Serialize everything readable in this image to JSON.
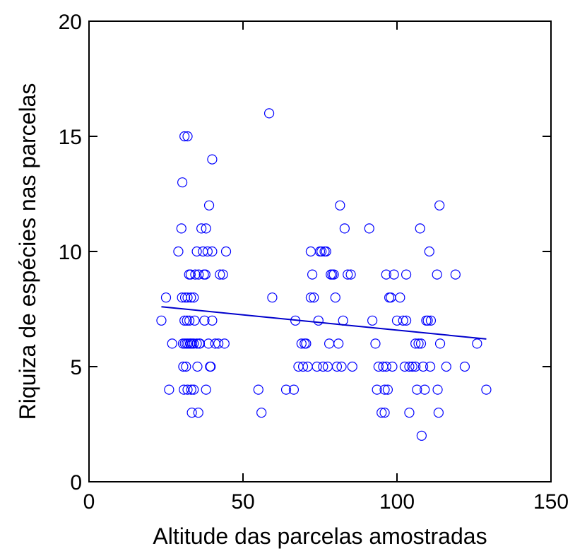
{
  "chart_data": {
    "type": "scatter",
    "title": "",
    "xlabel": "Altitude das parcelas amostradas",
    "ylabel": "Riquiza de espécies nas parcelas",
    "xlim": [
      0,
      150
    ],
    "ylim": [
      0,
      20
    ],
    "xticks": [
      0,
      50,
      100,
      150
    ],
    "yticks": [
      0,
      5,
      10,
      15,
      20
    ],
    "grid": false,
    "marker": "open-circle",
    "marker_color": "#0000ff",
    "trend_color": "#0000cc",
    "trendline": {
      "x": [
        23.5,
        129
      ],
      "y": [
        7.6,
        6.2
      ]
    },
    "points": [
      [
        23.5,
        7
      ],
      [
        25,
        8
      ],
      [
        26,
        4
      ],
      [
        27,
        6
      ],
      [
        29,
        10
      ],
      [
        30,
        11
      ],
      [
        30.2,
        8
      ],
      [
        30.3,
        13
      ],
      [
        30.5,
        6
      ],
      [
        30.6,
        5
      ],
      [
        30.8,
        4
      ],
      [
        31,
        15
      ],
      [
        31,
        7
      ],
      [
        31.1,
        6
      ],
      [
        31.2,
        8
      ],
      [
        31.5,
        5
      ],
      [
        31.7,
        6
      ],
      [
        31.8,
        7
      ],
      [
        32,
        15
      ],
      [
        32,
        4
      ],
      [
        32,
        8
      ],
      [
        32.2,
        6
      ],
      [
        32.5,
        9
      ],
      [
        32.6,
        7
      ],
      [
        32.8,
        6
      ],
      [
        33,
        9
      ],
      [
        33,
        6
      ],
      [
        33.1,
        8
      ],
      [
        33.2,
        4
      ],
      [
        33.4,
        3
      ],
      [
        33.5,
        6
      ],
      [
        34,
        4
      ],
      [
        34,
        8
      ],
      [
        34,
        6
      ],
      [
        34.3,
        7
      ],
      [
        34.5,
        9
      ],
      [
        35,
        10
      ],
      [
        35,
        6
      ],
      [
        35.2,
        5
      ],
      [
        35.5,
        3
      ],
      [
        35.6,
        9
      ],
      [
        35.8,
        6
      ],
      [
        36,
        6
      ],
      [
        36.5,
        11
      ],
      [
        37,
        10
      ],
      [
        37.3,
        9
      ],
      [
        37.5,
        7
      ],
      [
        37.8,
        9
      ],
      [
        38,
        11
      ],
      [
        38,
        4
      ],
      [
        38.5,
        10
      ],
      [
        38.8,
        6
      ],
      [
        39,
        12
      ],
      [
        39.3,
        5
      ],
      [
        39.5,
        5
      ],
      [
        40,
        14
      ],
      [
        40,
        10
      ],
      [
        40,
        7
      ],
      [
        41,
        6
      ],
      [
        42,
        6
      ],
      [
        42.5,
        9
      ],
      [
        43.5,
        9
      ],
      [
        44,
        6
      ],
      [
        44.5,
        10
      ],
      [
        55,
        4
      ],
      [
        56,
        3
      ],
      [
        58.5,
        16
      ],
      [
        59.5,
        8
      ],
      [
        64,
        4
      ],
      [
        66.5,
        4
      ],
      [
        67,
        7
      ],
      [
        68,
        5
      ],
      [
        69,
        6
      ],
      [
        69.5,
        5
      ],
      [
        70,
        6
      ],
      [
        70.5,
        6
      ],
      [
        71,
        5
      ],
      [
        72,
        10
      ],
      [
        72,
        8
      ],
      [
        72.5,
        9
      ],
      [
        73,
        8
      ],
      [
        74,
        5
      ],
      [
        74.5,
        7
      ],
      [
        75,
        10
      ],
      [
        75.5,
        10
      ],
      [
        76,
        5
      ],
      [
        76.5,
        10
      ],
      [
        77,
        10
      ],
      [
        77.5,
        5
      ],
      [
        78,
        6
      ],
      [
        78.5,
        9
      ],
      [
        79,
        9
      ],
      [
        79.5,
        9
      ],
      [
        80,
        8
      ],
      [
        80.5,
        5
      ],
      [
        81,
        6
      ],
      [
        81.5,
        12
      ],
      [
        82,
        5
      ],
      [
        82.5,
        7
      ],
      [
        83,
        11
      ],
      [
        84,
        9
      ],
      [
        85,
        9
      ],
      [
        85.5,
        5
      ],
      [
        91,
        11
      ],
      [
        92,
        7
      ],
      [
        93,
        6
      ],
      [
        93.5,
        4
      ],
      [
        94,
        5
      ],
      [
        95,
        3
      ],
      [
        95.5,
        5
      ],
      [
        96,
        3
      ],
      [
        96,
        4
      ],
      [
        96.5,
        5
      ],
      [
        96.5,
        9
      ],
      [
        97,
        4
      ],
      [
        97.5,
        8
      ],
      [
        98,
        8
      ],
      [
        98.5,
        5
      ],
      [
        99,
        9
      ],
      [
        100,
        7
      ],
      [
        101,
        8
      ],
      [
        102,
        7
      ],
      [
        102.5,
        5
      ],
      [
        103,
        9
      ],
      [
        103,
        7
      ],
      [
        104,
        3
      ],
      [
        104,
        5
      ],
      [
        105,
        5
      ],
      [
        106,
        6
      ],
      [
        106,
        5
      ],
      [
        106.5,
        4
      ],
      [
        107,
        6
      ],
      [
        107.5,
        11
      ],
      [
        107.8,
        6
      ],
      [
        108,
        2
      ],
      [
        108.5,
        5
      ],
      [
        109,
        4
      ],
      [
        109.5,
        7
      ],
      [
        110,
        7
      ],
      [
        110.5,
        10
      ],
      [
        110.8,
        5
      ],
      [
        111,
        7
      ],
      [
        113,
        9
      ],
      [
        113.2,
        4
      ],
      [
        113.5,
        3
      ],
      [
        113.8,
        12
      ],
      [
        114,
        6
      ],
      [
        116,
        5
      ],
      [
        119,
        9
      ],
      [
        122,
        5
      ],
      [
        126,
        6
      ],
      [
        129,
        4
      ]
    ]
  }
}
